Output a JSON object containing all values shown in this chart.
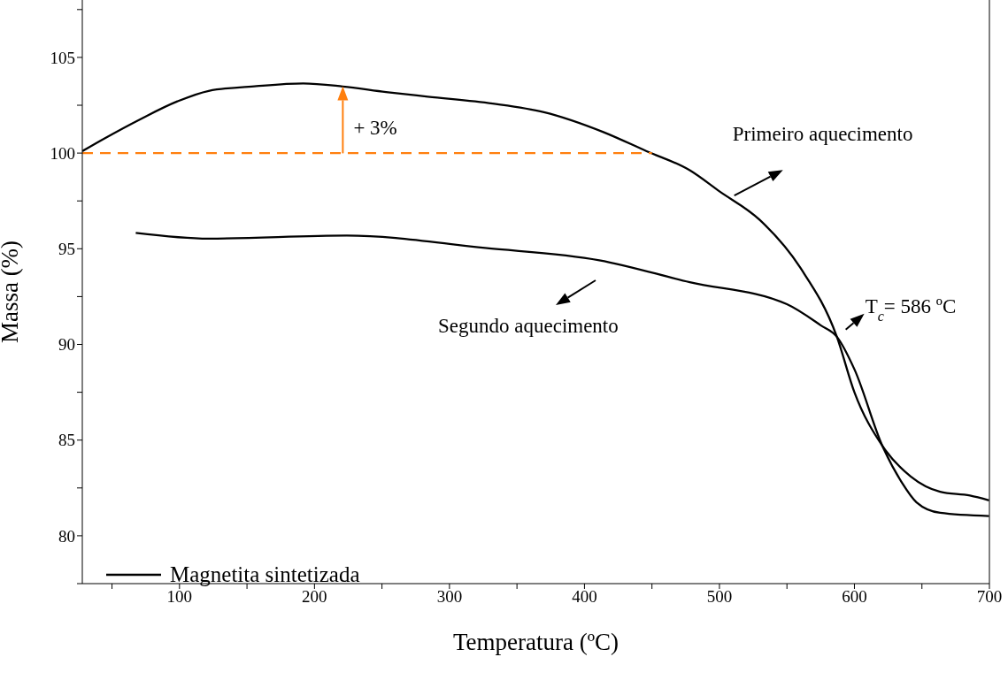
{
  "chart_data": {
    "type": "line",
    "xlabel": "Temperatura (ºC)",
    "ylabel": "Massa (%)",
    "xlim": [
      28,
      700
    ],
    "ylim": [
      77.5,
      108
    ],
    "xticks": [
      {
        "value": 50,
        "label": null
      },
      100,
      {
        "value": 150,
        "label": null
      },
      200,
      {
        "value": 250,
        "label": null
      },
      300,
      {
        "value": 350,
        "label": null
      },
      400,
      {
        "value": 450,
        "label": null
      },
      500,
      {
        "value": 550,
        "label": null
      },
      600,
      {
        "value": 650,
        "label": null
      },
      700
    ],
    "yticks": [
      {
        "value": 77.5,
        "label": null
      },
      80,
      {
        "value": 82.5,
        "label": null
      },
      85,
      {
        "value": 87.5,
        "label": null
      },
      90,
      {
        "value": 92.5,
        "label": null
      },
      95,
      {
        "value": 97.5,
        "label": null
      },
      100,
      {
        "value": 102.5,
        "label": null
      },
      105,
      {
        "value": 107.5,
        "label": null
      }
    ],
    "legend": "bottom left",
    "marker": "none",
    "series": [
      {
        "name": "Magnetita sintetizada",
        "color": "#000000",
        "line_style": "solid",
        "x": [
          28,
          42.8,
          71.8,
          98.4,
          121.6,
          157,
          191.7,
          221,
          253,
          284,
          332,
          370,
          414,
          446,
          478,
          500,
          530,
          560,
          587,
          600,
          620.7,
          641.7,
          663.5,
          685.6,
          699.7
        ],
        "values": [
          100.1,
          100.7,
          101.8,
          102.7,
          103.25,
          103.5,
          103.64,
          103.48,
          103.19,
          102.95,
          102.59,
          102.14,
          101.1,
          100.1,
          99.1,
          98.0,
          96.5,
          94.0,
          90.4,
          87.5,
          84.7,
          83.1,
          82.3,
          82.1,
          81.85
        ]
      },
      {
        "color": "#000000",
        "line_style": "solid",
        "x": [
          67.6,
          121.6,
          224,
          326.4,
          411,
          478,
          550,
          575,
          587,
          600,
          620.7,
          635,
          646,
          663.5,
          699.7
        ],
        "values": [
          95.83,
          95.53,
          95.69,
          95.04,
          94.4,
          93.25,
          92.1,
          91.0,
          90.4,
          88.7,
          84.7,
          82.8,
          81.75,
          81.2,
          81.03
        ]
      },
      {
        "color": "#ff7f0e",
        "line_style": "dashed",
        "x": [
          28,
          450
        ],
        "values": [
          100,
          100
        ]
      }
    ],
    "annotations": [
      {
        "text": "+ 3%",
        "x": 221,
        "y": 103.5
      },
      {
        "text": "Primeiro aquecimento",
        "x": 511,
        "y": 97.5
      },
      "Segundo aquecimento",
      {
        "text": "T$_{c}$= 586 ºC",
        "x": 587,
        "y": 90.4
      }
    ]
  }
}
